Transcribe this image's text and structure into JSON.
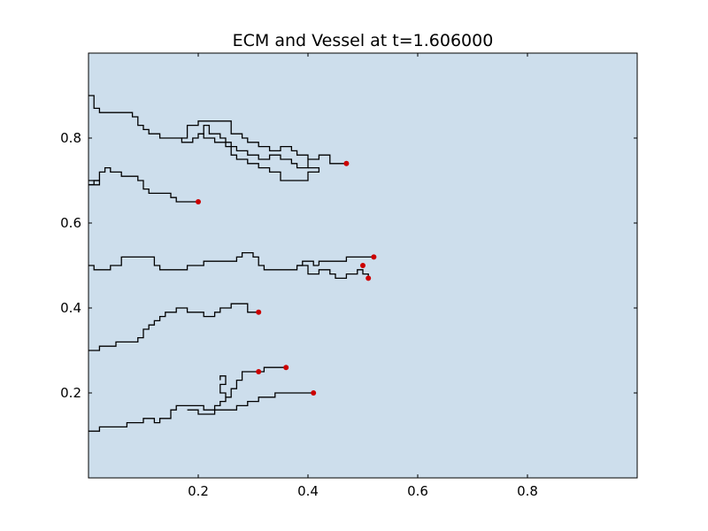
{
  "chart_data": {
    "type": "line",
    "title": "ECM and Vessel at t=1.606000",
    "xlabel": "",
    "ylabel": "",
    "xlim": [
      0,
      1
    ],
    "ylim": [
      0,
      1
    ],
    "xticks": [
      0.2,
      0.4,
      0.6,
      0.8
    ],
    "yticks": [
      0.2,
      0.4,
      0.6,
      0.8
    ],
    "xtick_labels": [
      "0.2",
      "0.4",
      "0.6",
      "0.8"
    ],
    "ytick_labels": [
      "0.2",
      "0.4",
      "0.6",
      "0.8"
    ],
    "grid": false,
    "background_color": "#cddeec",
    "line_color": "#000000",
    "tip_color": "#cc0000",
    "series": [
      {
        "values": [
          [
            0.0,
            0.9
          ],
          [
            0.01,
            0.9
          ],
          [
            0.01,
            0.87
          ],
          [
            0.02,
            0.87
          ],
          [
            0.02,
            0.86
          ],
          [
            0.08,
            0.86
          ],
          [
            0.08,
            0.85
          ],
          [
            0.09,
            0.85
          ],
          [
            0.09,
            0.83
          ],
          [
            0.1,
            0.83
          ],
          [
            0.1,
            0.82
          ],
          [
            0.11,
            0.82
          ],
          [
            0.11,
            0.81
          ],
          [
            0.13,
            0.81
          ],
          [
            0.13,
            0.8
          ],
          [
            0.17,
            0.8
          ],
          [
            0.17,
            0.79
          ],
          [
            0.19,
            0.79
          ],
          [
            0.19,
            0.8
          ],
          [
            0.2,
            0.8
          ],
          [
            0.2,
            0.81
          ],
          [
            0.21,
            0.81
          ],
          [
            0.21,
            0.8
          ],
          [
            0.23,
            0.8
          ],
          [
            0.23,
            0.79
          ],
          [
            0.25,
            0.79
          ],
          [
            0.25,
            0.78
          ],
          [
            0.27,
            0.78
          ],
          [
            0.27,
            0.77
          ],
          [
            0.29,
            0.77
          ],
          [
            0.29,
            0.76
          ],
          [
            0.31,
            0.76
          ],
          [
            0.31,
            0.75
          ],
          [
            0.33,
            0.75
          ],
          [
            0.33,
            0.76
          ],
          [
            0.35,
            0.76
          ],
          [
            0.35,
            0.75
          ],
          [
            0.37,
            0.75
          ],
          [
            0.37,
            0.74
          ],
          [
            0.38,
            0.74
          ],
          [
            0.38,
            0.73
          ],
          [
            0.4,
            0.73
          ],
          [
            0.4,
            0.75
          ],
          [
            0.42,
            0.75
          ],
          [
            0.42,
            0.76
          ],
          [
            0.44,
            0.76
          ],
          [
            0.44,
            0.74
          ],
          [
            0.47,
            0.74
          ]
        ]
      },
      {
        "values": [
          [
            0.17,
            0.8
          ],
          [
            0.18,
            0.8
          ],
          [
            0.18,
            0.83
          ],
          [
            0.2,
            0.83
          ],
          [
            0.2,
            0.84
          ],
          [
            0.26,
            0.84
          ],
          [
            0.26,
            0.81
          ],
          [
            0.28,
            0.81
          ],
          [
            0.28,
            0.8
          ],
          [
            0.29,
            0.8
          ],
          [
            0.29,
            0.79
          ],
          [
            0.31,
            0.79
          ],
          [
            0.31,
            0.78
          ],
          [
            0.33,
            0.78
          ],
          [
            0.33,
            0.77
          ],
          [
            0.35,
            0.77
          ],
          [
            0.35,
            0.78
          ],
          [
            0.37,
            0.78
          ],
          [
            0.37,
            0.77
          ],
          [
            0.38,
            0.77
          ],
          [
            0.38,
            0.76
          ],
          [
            0.4,
            0.76
          ],
          [
            0.4,
            0.75
          ]
        ]
      },
      {
        "values": [
          [
            0.2,
            0.81
          ],
          [
            0.21,
            0.81
          ],
          [
            0.21,
            0.83
          ],
          [
            0.22,
            0.83
          ],
          [
            0.22,
            0.81
          ],
          [
            0.24,
            0.81
          ],
          [
            0.24,
            0.8
          ],
          [
            0.25,
            0.8
          ],
          [
            0.25,
            0.79
          ],
          [
            0.26,
            0.79
          ],
          [
            0.26,
            0.76
          ],
          [
            0.27,
            0.76
          ],
          [
            0.27,
            0.75
          ],
          [
            0.29,
            0.75
          ],
          [
            0.29,
            0.74
          ],
          [
            0.31,
            0.74
          ],
          [
            0.31,
            0.73
          ],
          [
            0.33,
            0.73
          ],
          [
            0.33,
            0.72
          ],
          [
            0.35,
            0.72
          ],
          [
            0.35,
            0.7
          ],
          [
            0.4,
            0.7
          ],
          [
            0.4,
            0.72
          ],
          [
            0.42,
            0.72
          ],
          [
            0.42,
            0.73
          ],
          [
            0.4,
            0.73
          ]
        ]
      },
      {
        "values": [
          [
            0.0,
            0.69
          ],
          [
            0.01,
            0.69
          ],
          [
            0.01,
            0.7
          ],
          [
            0.02,
            0.7
          ],
          [
            0.02,
            0.72
          ],
          [
            0.03,
            0.72
          ],
          [
            0.03,
            0.73
          ],
          [
            0.04,
            0.73
          ],
          [
            0.04,
            0.72
          ],
          [
            0.06,
            0.72
          ],
          [
            0.06,
            0.71
          ],
          [
            0.09,
            0.71
          ],
          [
            0.09,
            0.7
          ],
          [
            0.1,
            0.7
          ],
          [
            0.1,
            0.68
          ],
          [
            0.11,
            0.68
          ],
          [
            0.11,
            0.67
          ],
          [
            0.15,
            0.67
          ],
          [
            0.15,
            0.66
          ],
          [
            0.16,
            0.66
          ],
          [
            0.16,
            0.65
          ],
          [
            0.2,
            0.65
          ]
        ]
      },
      {
        "values": [
          [
            0.0,
            0.7
          ],
          [
            0.02,
            0.7
          ],
          [
            0.02,
            0.69
          ],
          [
            0.0,
            0.69
          ]
        ]
      },
      {
        "values": [
          [
            0.0,
            0.5
          ],
          [
            0.01,
            0.5
          ],
          [
            0.01,
            0.49
          ],
          [
            0.04,
            0.49
          ],
          [
            0.04,
            0.5
          ],
          [
            0.06,
            0.5
          ],
          [
            0.06,
            0.52
          ],
          [
            0.12,
            0.52
          ],
          [
            0.12,
            0.5
          ],
          [
            0.13,
            0.5
          ],
          [
            0.13,
            0.49
          ],
          [
            0.18,
            0.49
          ],
          [
            0.18,
            0.5
          ],
          [
            0.21,
            0.5
          ],
          [
            0.21,
            0.51
          ],
          [
            0.27,
            0.51
          ],
          [
            0.27,
            0.52
          ],
          [
            0.28,
            0.52
          ],
          [
            0.28,
            0.53
          ],
          [
            0.3,
            0.53
          ],
          [
            0.3,
            0.52
          ],
          [
            0.31,
            0.52
          ],
          [
            0.31,
            0.5
          ],
          [
            0.32,
            0.5
          ],
          [
            0.32,
            0.49
          ],
          [
            0.38,
            0.49
          ],
          [
            0.38,
            0.5
          ],
          [
            0.39,
            0.5
          ],
          [
            0.39,
            0.51
          ],
          [
            0.41,
            0.51
          ],
          [
            0.41,
            0.5
          ],
          [
            0.42,
            0.5
          ]
        ]
      },
      {
        "values": [
          [
            0.38,
            0.5
          ],
          [
            0.4,
            0.5
          ],
          [
            0.4,
            0.48
          ],
          [
            0.42,
            0.48
          ],
          [
            0.42,
            0.49
          ],
          [
            0.44,
            0.49
          ],
          [
            0.44,
            0.48
          ],
          [
            0.45,
            0.48
          ],
          [
            0.45,
            0.47
          ],
          [
            0.47,
            0.47
          ],
          [
            0.47,
            0.48
          ],
          [
            0.49,
            0.48
          ],
          [
            0.49,
            0.49
          ],
          [
            0.5,
            0.49
          ],
          [
            0.5,
            0.48
          ],
          [
            0.51,
            0.48
          ],
          [
            0.51,
            0.47
          ]
        ]
      },
      {
        "values": [
          [
            0.42,
            0.5
          ],
          [
            0.42,
            0.51
          ],
          [
            0.47,
            0.51
          ],
          [
            0.47,
            0.52
          ],
          [
            0.52,
            0.52
          ]
        ]
      },
      {
        "values": [
          [
            0.0,
            0.3
          ],
          [
            0.02,
            0.3
          ],
          [
            0.02,
            0.31
          ],
          [
            0.05,
            0.31
          ],
          [
            0.05,
            0.32
          ],
          [
            0.09,
            0.32
          ],
          [
            0.09,
            0.33
          ],
          [
            0.1,
            0.33
          ],
          [
            0.1,
            0.35
          ],
          [
            0.11,
            0.35
          ],
          [
            0.11,
            0.36
          ],
          [
            0.12,
            0.36
          ],
          [
            0.12,
            0.37
          ],
          [
            0.13,
            0.37
          ],
          [
            0.13,
            0.38
          ],
          [
            0.14,
            0.38
          ],
          [
            0.14,
            0.39
          ],
          [
            0.16,
            0.39
          ],
          [
            0.16,
            0.4
          ],
          [
            0.18,
            0.4
          ],
          [
            0.18,
            0.39
          ],
          [
            0.21,
            0.39
          ],
          [
            0.21,
            0.38
          ],
          [
            0.23,
            0.38
          ],
          [
            0.23,
            0.39
          ],
          [
            0.24,
            0.39
          ],
          [
            0.24,
            0.4
          ],
          [
            0.26,
            0.4
          ],
          [
            0.26,
            0.41
          ],
          [
            0.29,
            0.41
          ],
          [
            0.29,
            0.39
          ],
          [
            0.31,
            0.39
          ]
        ]
      },
      {
        "values": [
          [
            0.0,
            0.11
          ],
          [
            0.02,
            0.11
          ],
          [
            0.02,
            0.12
          ],
          [
            0.07,
            0.12
          ],
          [
            0.07,
            0.13
          ],
          [
            0.1,
            0.13
          ],
          [
            0.1,
            0.14
          ],
          [
            0.12,
            0.14
          ],
          [
            0.12,
            0.13
          ],
          [
            0.13,
            0.13
          ],
          [
            0.13,
            0.14
          ],
          [
            0.15,
            0.14
          ],
          [
            0.15,
            0.16
          ],
          [
            0.16,
            0.16
          ],
          [
            0.16,
            0.17
          ],
          [
            0.21,
            0.17
          ],
          [
            0.21,
            0.16
          ],
          [
            0.23,
            0.16
          ],
          [
            0.23,
            0.17
          ],
          [
            0.24,
            0.17
          ],
          [
            0.24,
            0.18
          ],
          [
            0.25,
            0.18
          ],
          [
            0.25,
            0.19
          ],
          [
            0.26,
            0.19
          ],
          [
            0.26,
            0.21
          ],
          [
            0.27,
            0.21
          ],
          [
            0.27,
            0.23
          ],
          [
            0.28,
            0.23
          ],
          [
            0.28,
            0.25
          ],
          [
            0.31,
            0.25
          ]
        ]
      },
      {
        "values": [
          [
            0.31,
            0.25
          ],
          [
            0.32,
            0.25
          ],
          [
            0.32,
            0.26
          ],
          [
            0.36,
            0.26
          ]
        ]
      },
      {
        "values": [
          [
            0.24,
            0.23
          ],
          [
            0.24,
            0.24
          ],
          [
            0.25,
            0.24
          ],
          [
            0.25,
            0.22
          ],
          [
            0.24,
            0.22
          ],
          [
            0.24,
            0.2
          ],
          [
            0.25,
            0.2
          ],
          [
            0.25,
            0.19
          ]
        ]
      },
      {
        "values": [
          [
            0.18,
            0.16
          ],
          [
            0.2,
            0.16
          ],
          [
            0.2,
            0.15
          ],
          [
            0.23,
            0.15
          ],
          [
            0.23,
            0.16
          ],
          [
            0.27,
            0.16
          ],
          [
            0.27,
            0.17
          ],
          [
            0.29,
            0.17
          ],
          [
            0.29,
            0.18
          ],
          [
            0.31,
            0.18
          ],
          [
            0.31,
            0.19
          ],
          [
            0.34,
            0.19
          ],
          [
            0.34,
            0.2
          ],
          [
            0.41,
            0.2
          ]
        ]
      }
    ],
    "tips": [
      [
        0.47,
        0.74
      ],
      [
        0.2,
        0.65
      ],
      [
        0.52,
        0.52
      ],
      [
        0.5,
        0.5
      ],
      [
        0.51,
        0.47
      ],
      [
        0.31,
        0.39
      ],
      [
        0.36,
        0.26
      ],
      [
        0.31,
        0.25
      ],
      [
        0.41,
        0.2
      ]
    ]
  }
}
